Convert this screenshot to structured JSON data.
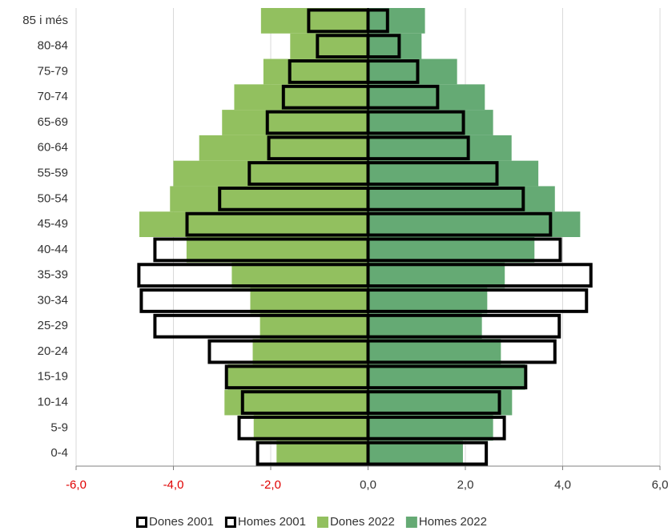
{
  "chart_data": {
    "type": "pyramid",
    "categories": [
      "0-4",
      "5-9",
      "10-14",
      "15-19",
      "20-24",
      "25-29",
      "30-34",
      "35-39",
      "40-44",
      "45-49",
      "50-54",
      "55-59",
      "60-64",
      "65-69",
      "70-74",
      "75-79",
      "80-84",
      "85 i més"
    ],
    "series": [
      {
        "name": "Dones 2022",
        "color": "#92c05f",
        "outline": false,
        "values": [
          -1.88,
          -2.35,
          -2.95,
          -2.88,
          -2.37,
          -2.22,
          -2.42,
          -2.8,
          -3.73,
          -4.7,
          -4.07,
          -4.0,
          -3.47,
          -3.0,
          -2.75,
          -2.15,
          -1.6,
          -2.2
        ]
      },
      {
        "name": "Homes 2022",
        "color": "#65aa74",
        "outline": false,
        "values": [
          1.95,
          2.57,
          2.96,
          3.23,
          2.73,
          2.34,
          2.45,
          2.81,
          3.42,
          4.36,
          3.84,
          3.5,
          2.95,
          2.57,
          2.4,
          1.83,
          1.1,
          1.17
        ]
      },
      {
        "name": "Dones 2001",
        "color": "#000000",
        "outline": true,
        "values": [
          -2.27,
          -2.65,
          -2.58,
          -2.91,
          -3.26,
          -4.38,
          -4.66,
          -4.71,
          -4.38,
          -3.72,
          -3.05,
          -2.44,
          -2.04,
          -2.07,
          -1.74,
          -1.61,
          -1.04,
          -1.22
        ]
      },
      {
        "name": "Homes 2001",
        "color": "#000000",
        "outline": true,
        "values": [
          2.43,
          2.8,
          2.7,
          3.24,
          3.84,
          3.93,
          4.49,
          4.58,
          3.95,
          3.75,
          3.19,
          2.65,
          2.06,
          1.96,
          1.43,
          1.02,
          0.64,
          0.4
        ]
      }
    ],
    "legend_order": [
      2,
      3,
      0,
      1
    ],
    "xlim": [
      -6,
      6
    ],
    "xticks": [
      {
        "value": -6,
        "label": "-6,0"
      },
      {
        "value": -4,
        "label": "-4,0"
      },
      {
        "value": -2,
        "label": "-2,0"
      },
      {
        "value": 0,
        "label": "0,0"
      },
      {
        "value": 2,
        "label": "2,0"
      },
      {
        "value": 4,
        "label": "4,0"
      },
      {
        "value": 6,
        "label": "6,0"
      }
    ],
    "negative_tick_color": "#e00000",
    "grid": true,
    "legend": "bottom"
  }
}
